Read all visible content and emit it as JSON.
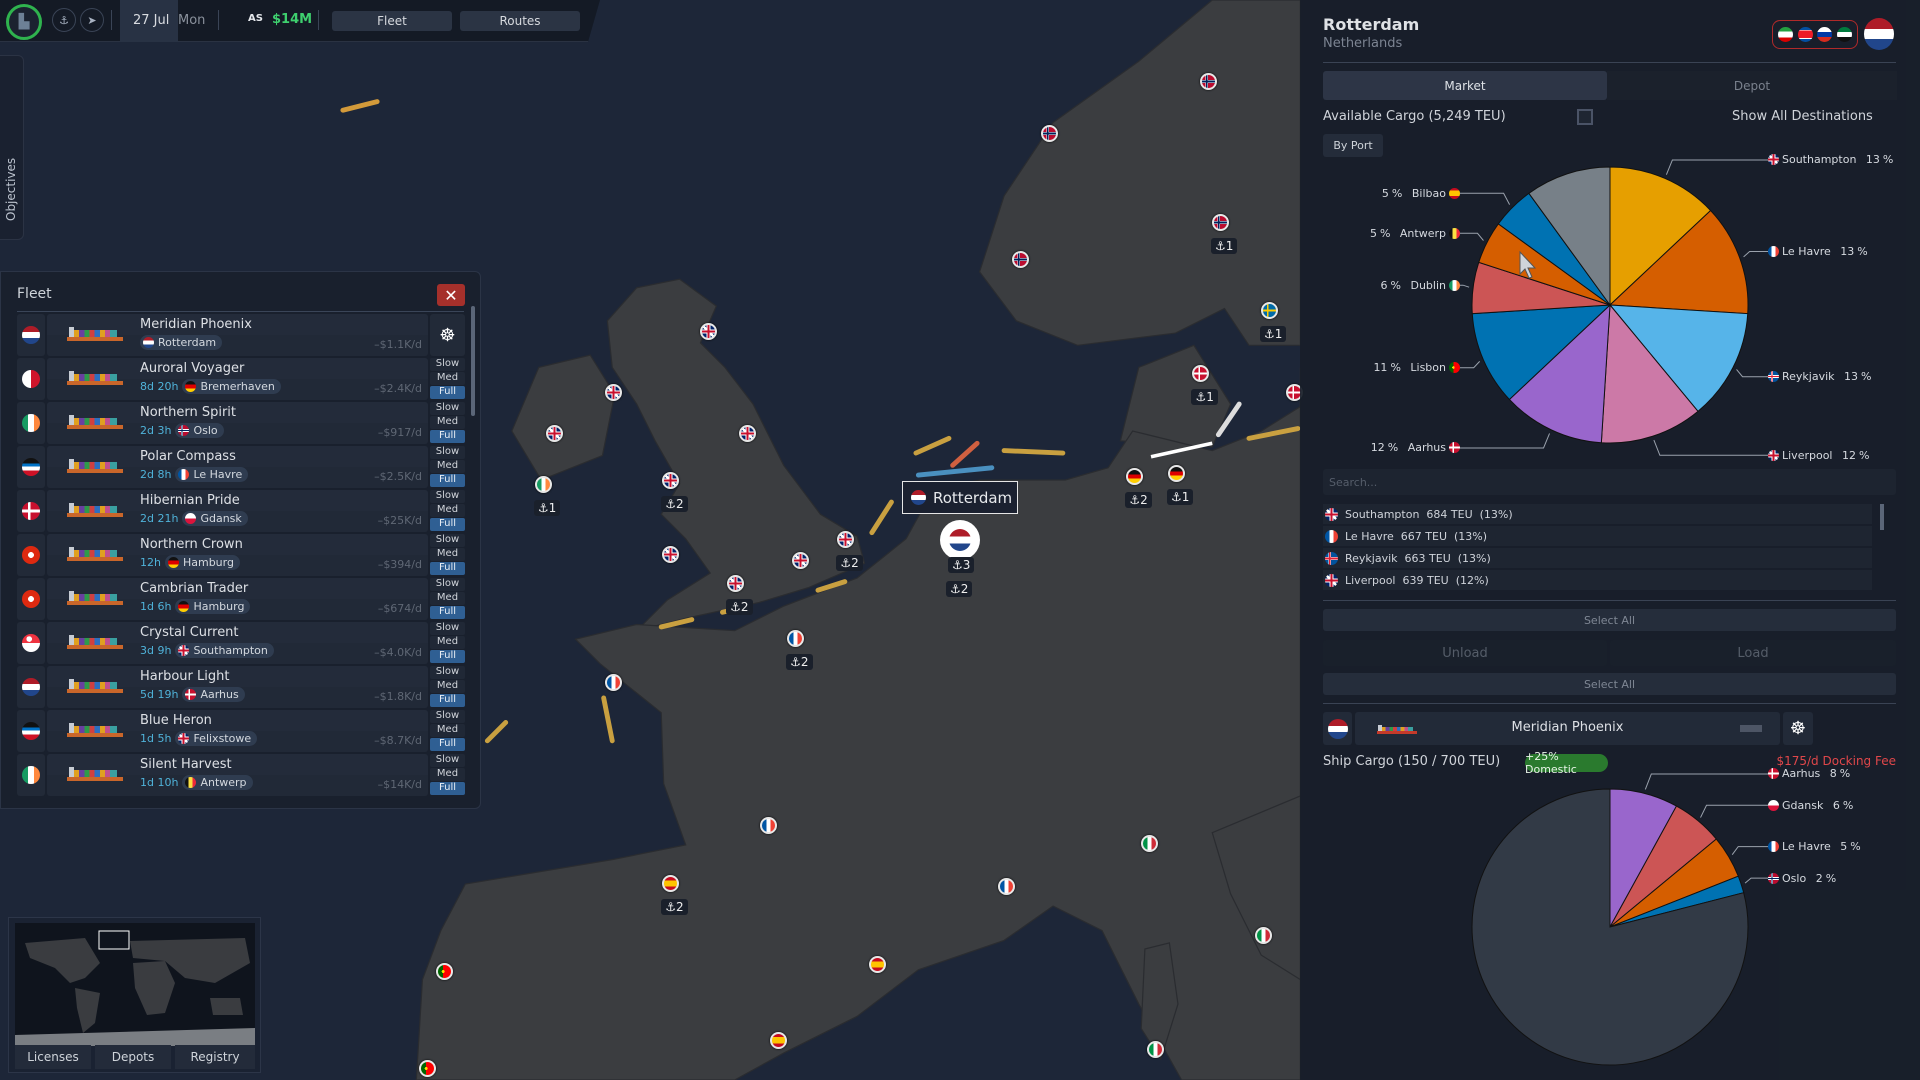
{
  "topbar": {
    "date": "27 Jul",
    "weekday": "Mon",
    "player_tag": "AS",
    "money": "$14M",
    "fleet_label": "Fleet",
    "routes_label": "Routes",
    "icons": [
      "company-logo-icon",
      "anchor-icon",
      "route-icon"
    ]
  },
  "objectives_label": "Objectives",
  "fleet": {
    "title": "Fleet",
    "close_icon": "close-icon",
    "speed_options": [
      "Slow",
      "Med",
      "Full"
    ],
    "ships": [
      {
        "name": "Meridian Phoenix",
        "eta": "",
        "port": "Rotterdam",
        "port_flag": "nl",
        "owner_flag": "nl",
        "cost": "–$1.1K/d",
        "speed": null
      },
      {
        "name": "Auroral Voyager",
        "eta": "8d 20h",
        "port": "Bremerhaven",
        "port_flag": "de",
        "owner_flag": "mt",
        "cost": "–$2.4K/d",
        "speed": "Full"
      },
      {
        "name": "Northern Spirit",
        "eta": "2d 3h",
        "port": "Oslo",
        "port_flag": "no",
        "owner_flag": "ie",
        "cost": "–$917/d",
        "speed": "Full"
      },
      {
        "name": "Polar Compass",
        "eta": "2d 8h",
        "port": "Le Havre",
        "port_flag": "fr",
        "owner_flag": "ag",
        "cost": "–$2.5K/d",
        "speed": "Full"
      },
      {
        "name": "Hibernian Pride",
        "eta": "2d 21h",
        "port": "Gdansk",
        "port_flag": "pl",
        "owner_flag": "dk",
        "cost": "–$25K/d",
        "speed": "Full"
      },
      {
        "name": "Northern Crown",
        "eta": "12h",
        "port": "Hamburg",
        "port_flag": "de",
        "owner_flag": "hk",
        "cost": "–$394/d",
        "speed": "Full"
      },
      {
        "name": "Cambrian Trader",
        "eta": "1d 6h",
        "port": "Hamburg",
        "port_flag": "de",
        "owner_flag": "hk",
        "cost": "–$674/d",
        "speed": "Full"
      },
      {
        "name": "Crystal Current",
        "eta": "3d 9h",
        "port": "Southampton",
        "port_flag": "gb",
        "owner_flag": "sg",
        "cost": "–$4.0K/d",
        "speed": "Full"
      },
      {
        "name": "Harbour Light",
        "eta": "5d 19h",
        "port": "Aarhus",
        "port_flag": "dk",
        "owner_flag": "nl",
        "cost": "–$1.8K/d",
        "speed": "Full"
      },
      {
        "name": "Blue Heron",
        "eta": "1d 5h",
        "port": "Felixstowe",
        "port_flag": "gb",
        "owner_flag": "ag",
        "cost": "–$8.7K/d",
        "speed": "Full"
      },
      {
        "name": "Silent Harvest",
        "eta": "1d 10h",
        "port": "Antwerp",
        "port_flag": "be",
        "owner_flag": "ie",
        "cost": "–$14K/d",
        "speed": "Full"
      }
    ]
  },
  "minimap": {
    "buttons": [
      "Licenses",
      "Depots",
      "Registry"
    ]
  },
  "map": {
    "selected_port": "Rotterdam",
    "selected_flag": "nl",
    "markers": [
      {
        "flag": "no",
        "count": ""
      },
      {
        "flag": "no",
        "count": ""
      },
      {
        "flag": "no",
        "count": "1"
      },
      {
        "flag": "no",
        "count": ""
      },
      {
        "flag": "se",
        "count": "1"
      },
      {
        "flag": "dk",
        "count": "1"
      },
      {
        "flag": "dk",
        "count": ""
      },
      {
        "flag": "gb",
        "count": ""
      },
      {
        "flag": "gb",
        "count": ""
      },
      {
        "flag": "gb",
        "count": ""
      },
      {
        "flag": "ie",
        "count": "1"
      },
      {
        "flag": "gb",
        "count": "2"
      },
      {
        "flag": "gb",
        "count": "2"
      },
      {
        "flag": "gb",
        "count": ""
      },
      {
        "flag": "gb",
        "count": ""
      },
      {
        "flag": "gb",
        "count": "2"
      },
      {
        "flag": "fr",
        "count": "2"
      },
      {
        "flag": "fr",
        "count": ""
      },
      {
        "flag": "de",
        "count": "2"
      },
      {
        "flag": "de",
        "count": "1"
      },
      {
        "flag": "fr",
        "count": ""
      },
      {
        "flag": "es",
        "count": "2"
      },
      {
        "flag": "fr",
        "count": ""
      },
      {
        "flag": "es",
        "count": ""
      },
      {
        "flag": "es",
        "count": ""
      },
      {
        "flag": "pt",
        "count": ""
      },
      {
        "flag": "pt",
        "count": ""
      },
      {
        "flag": "it",
        "count": ""
      },
      {
        "flag": "it",
        "count": ""
      },
      {
        "flag": "it",
        "count": ""
      },
      {
        "flag": "gb",
        "count": ""
      }
    ],
    "selected_counts": [
      "3",
      "2"
    ]
  },
  "port_panel": {
    "title": "Rotterdam",
    "country": "Netherlands",
    "country_flag": "nl",
    "relation_flags": [
      "ir",
      "kp",
      "ru",
      "sy"
    ],
    "tabs": [
      "Market",
      "Depot"
    ],
    "available_cargo": "Available Cargo (5,249 TEU)",
    "show_all_destinations": "Show All Destinations",
    "show_all_checked": false,
    "by_port": "By Port",
    "search_placeholder": "Search...",
    "cargo_list": [
      {
        "flag": "gb",
        "port": "Southampton",
        "teu": "684 TEU",
        "pct": "(13%)"
      },
      {
        "flag": "fr",
        "port": "Le Havre",
        "teu": "667 TEU",
        "pct": "(13%)"
      },
      {
        "flag": "is",
        "port": "Reykjavik",
        "teu": "663 TEU",
        "pct": "(13%)"
      },
      {
        "flag": "gb",
        "port": "Liverpool",
        "teu": "639 TEU",
        "pct": "(12%)"
      }
    ],
    "select_all_1": "Select All",
    "unload": "Unload",
    "load": "Load",
    "select_all_2": "Select All",
    "ship_name": "Meridian Phoenix",
    "ship_flag": "nl",
    "ship_cargo": "Ship Cargo (150 / 700 TEU)",
    "domestic_badge": "+25% Domestic",
    "docking_fee": "$175/d Docking Fee"
  },
  "chart_data": [
    {
      "type": "pie",
      "title": "",
      "slices": [
        {
          "label": "Southampton",
          "flag": "gb",
          "value": 13,
          "color": "#e69f00"
        },
        {
          "label": "Le Havre",
          "flag": "fr",
          "value": 13,
          "color": "#d55e00"
        },
        {
          "label": "Reykjavik",
          "flag": "is",
          "value": 13,
          "color": "#56b4e9"
        },
        {
          "label": "Liverpool",
          "flag": "gb",
          "value": 12,
          "color": "#cc79a7"
        },
        {
          "label": "Aarhus",
          "flag": "dk",
          "value": 12,
          "color": "#9966cc"
        },
        {
          "label": "Lisbon",
          "flag": "pt",
          "value": 11,
          "color": "#0072b2"
        },
        {
          "label": "Dublin",
          "flag": "ie",
          "value": 6,
          "color": "#cc5555"
        },
        {
          "label": "Antwerp",
          "flag": "be",
          "value": 5,
          "color": "#d55e00"
        },
        {
          "label": "Bilbao",
          "flag": "es",
          "value": 5,
          "color": "#0072b2"
        },
        {
          "value": 10,
          "color": "#778088"
        }
      ]
    },
    {
      "type": "pie",
      "title": "",
      "slices": [
        {
          "label": "Aarhus",
          "flag": "dk",
          "value": 8,
          "color": "#9966cc"
        },
        {
          "label": "Gdansk",
          "flag": "pl",
          "value": 6,
          "color": "#cc5555"
        },
        {
          "label": "Le Havre",
          "flag": "fr",
          "value": 5,
          "color": "#d55e00"
        },
        {
          "label": "Oslo",
          "flag": "no",
          "value": 2,
          "color": "#0072b2"
        },
        {
          "value": 79,
          "color": "#323a46"
        }
      ]
    }
  ]
}
